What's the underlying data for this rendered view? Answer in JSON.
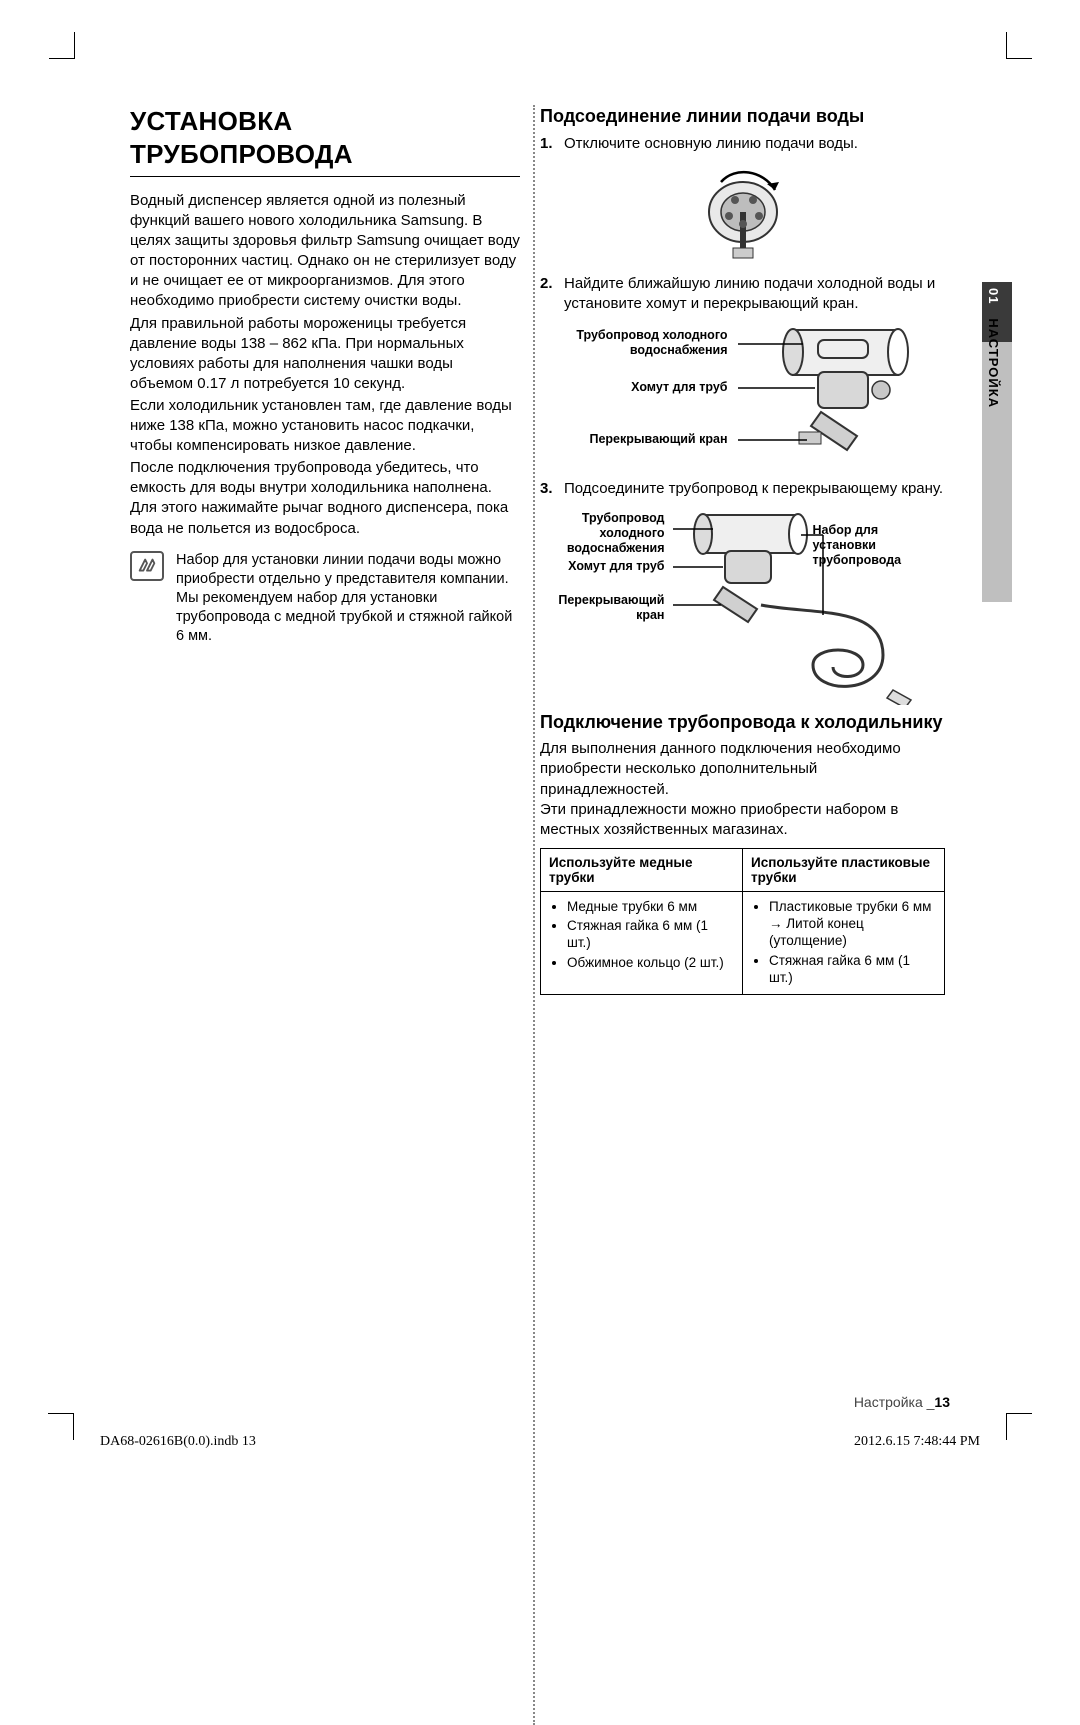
{
  "left": {
    "title_line1": "УСТАНОВКА",
    "title_line2": "ТРУБОПРОВОДА",
    "p1": "Водный диспенсер является одной из полезный функций вашего нового холодильника Samsung. В целях защиты здоровья фильтр Samsung очищает воду от посторонних частиц. Однако он не стерилизует воду и не очищает ее от микроорганизмов. Для этого необходимо приобрести систему очистки воды.",
    "p2": "Для правильной работы мороженицы требуется давление воды 138 – 862 кПа. При нормальных условиях работы для наполнения чашки воды объемом 0.17 л потребуется 10 секунд.",
    "p3": "Если холодильник установлен там, где давление воды ниже 138 кПа, можно установить насос подкачки, чтобы компенсировать низкое давление.",
    "p4": "После подключения трубопровода убедитесь, что емкость для воды внутри холодильника наполнена. Для этого нажимайте рычаг водного диспенсера, пока вода не польется из водосброса.",
    "note": "Набор для установки линии подачи воды можно приобрести отдельно у представителя компании.\nМы рекомендуем набор для установки трубопровода с медной трубкой и стяжной гайкой 6 мм."
  },
  "right": {
    "sub1": "Подсоединение линии подачи воды",
    "step1": "Отключите основную линию подачи воды.",
    "step2": "Найдите ближайшую линию подачи холодной воды и установите хомут и перекрывающий кран.",
    "fig2_lbl_pipe": "Трубопровод холодного водоснабжения",
    "fig2_lbl_clamp": "Хомут для труб",
    "fig2_lbl_valve": "Перекрывающий кран",
    "step3": "Подсоедините трубопровод к перекрывающему крану.",
    "fig3_lbl_pipe": "Трубопровод холодного водоснабжения",
    "fig3_lbl_clamp": "Хомут для труб",
    "fig3_lbl_valve": "Перекрывающий кран",
    "fig3_lbl_kit": "Набор для установки трубопровода",
    "sub2": "Подключение трубопровода к холодильнику",
    "p_connect": "Для выполнения данного подключения необходимо приобрести несколько дополнительный принадлежностей.\nЭти принадлежности можно приобрести набором в местных хозяйственных магазинах.",
    "table": {
      "h1": "Используйте медные трубки",
      "h2": "Используйте пластиковые трубки",
      "c1_items": [
        "Медные трубки 6 мм",
        "Стяжная гайка 6 мм (1 шт.)",
        "Обжимное кольцо (2 шт.)"
      ],
      "c2_items": [
        "Пластиковые трубки 6 мм → Литой конец (утолщение)",
        "Стяжная гайка 6 мм (1 шт.)"
      ]
    }
  },
  "tab": {
    "num": "01",
    "label": "НАСТРОЙКА"
  },
  "footer": {
    "section": "Настройка _",
    "page": "13"
  },
  "meta": {
    "left": "DA68-02616B(0.0).indb   13",
    "right": "2012.6.15   7:48:44 PM"
  }
}
